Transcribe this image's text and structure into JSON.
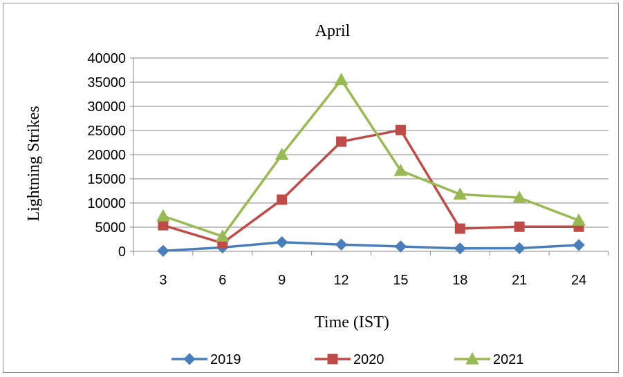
{
  "chart_data": {
    "type": "line",
    "title": "April",
    "xlabel": "Time (IST)",
    "ylabel": "Lightning Strikes",
    "categories": [
      "3",
      "6",
      "9",
      "12",
      "15",
      "18",
      "21",
      "24"
    ],
    "ylim": [
      0,
      40000
    ],
    "yticks": [
      0,
      5000,
      10000,
      15000,
      20000,
      25000,
      30000,
      35000,
      40000
    ],
    "ytick_labels": [
      "0",
      "5000",
      "10000",
      "15000",
      "20000",
      "25000",
      "30000",
      "35000",
      "40000"
    ],
    "grid": true,
    "legend_position": "bottom",
    "series": [
      {
        "name": "2019",
        "color": "#4a7ebb",
        "marker": "diamond",
        "values": [
          100,
          800,
          1900,
          1400,
          1000,
          600,
          650,
          1300
        ]
      },
      {
        "name": "2020",
        "color": "#be4b48",
        "marker": "square",
        "values": [
          5400,
          1700,
          10700,
          22700,
          25100,
          4700,
          5100,
          5100
        ]
      },
      {
        "name": "2021",
        "color": "#98b954",
        "marker": "triangle",
        "values": [
          7300,
          3100,
          20000,
          35500,
          16700,
          11800,
          11100,
          6400
        ]
      }
    ]
  }
}
